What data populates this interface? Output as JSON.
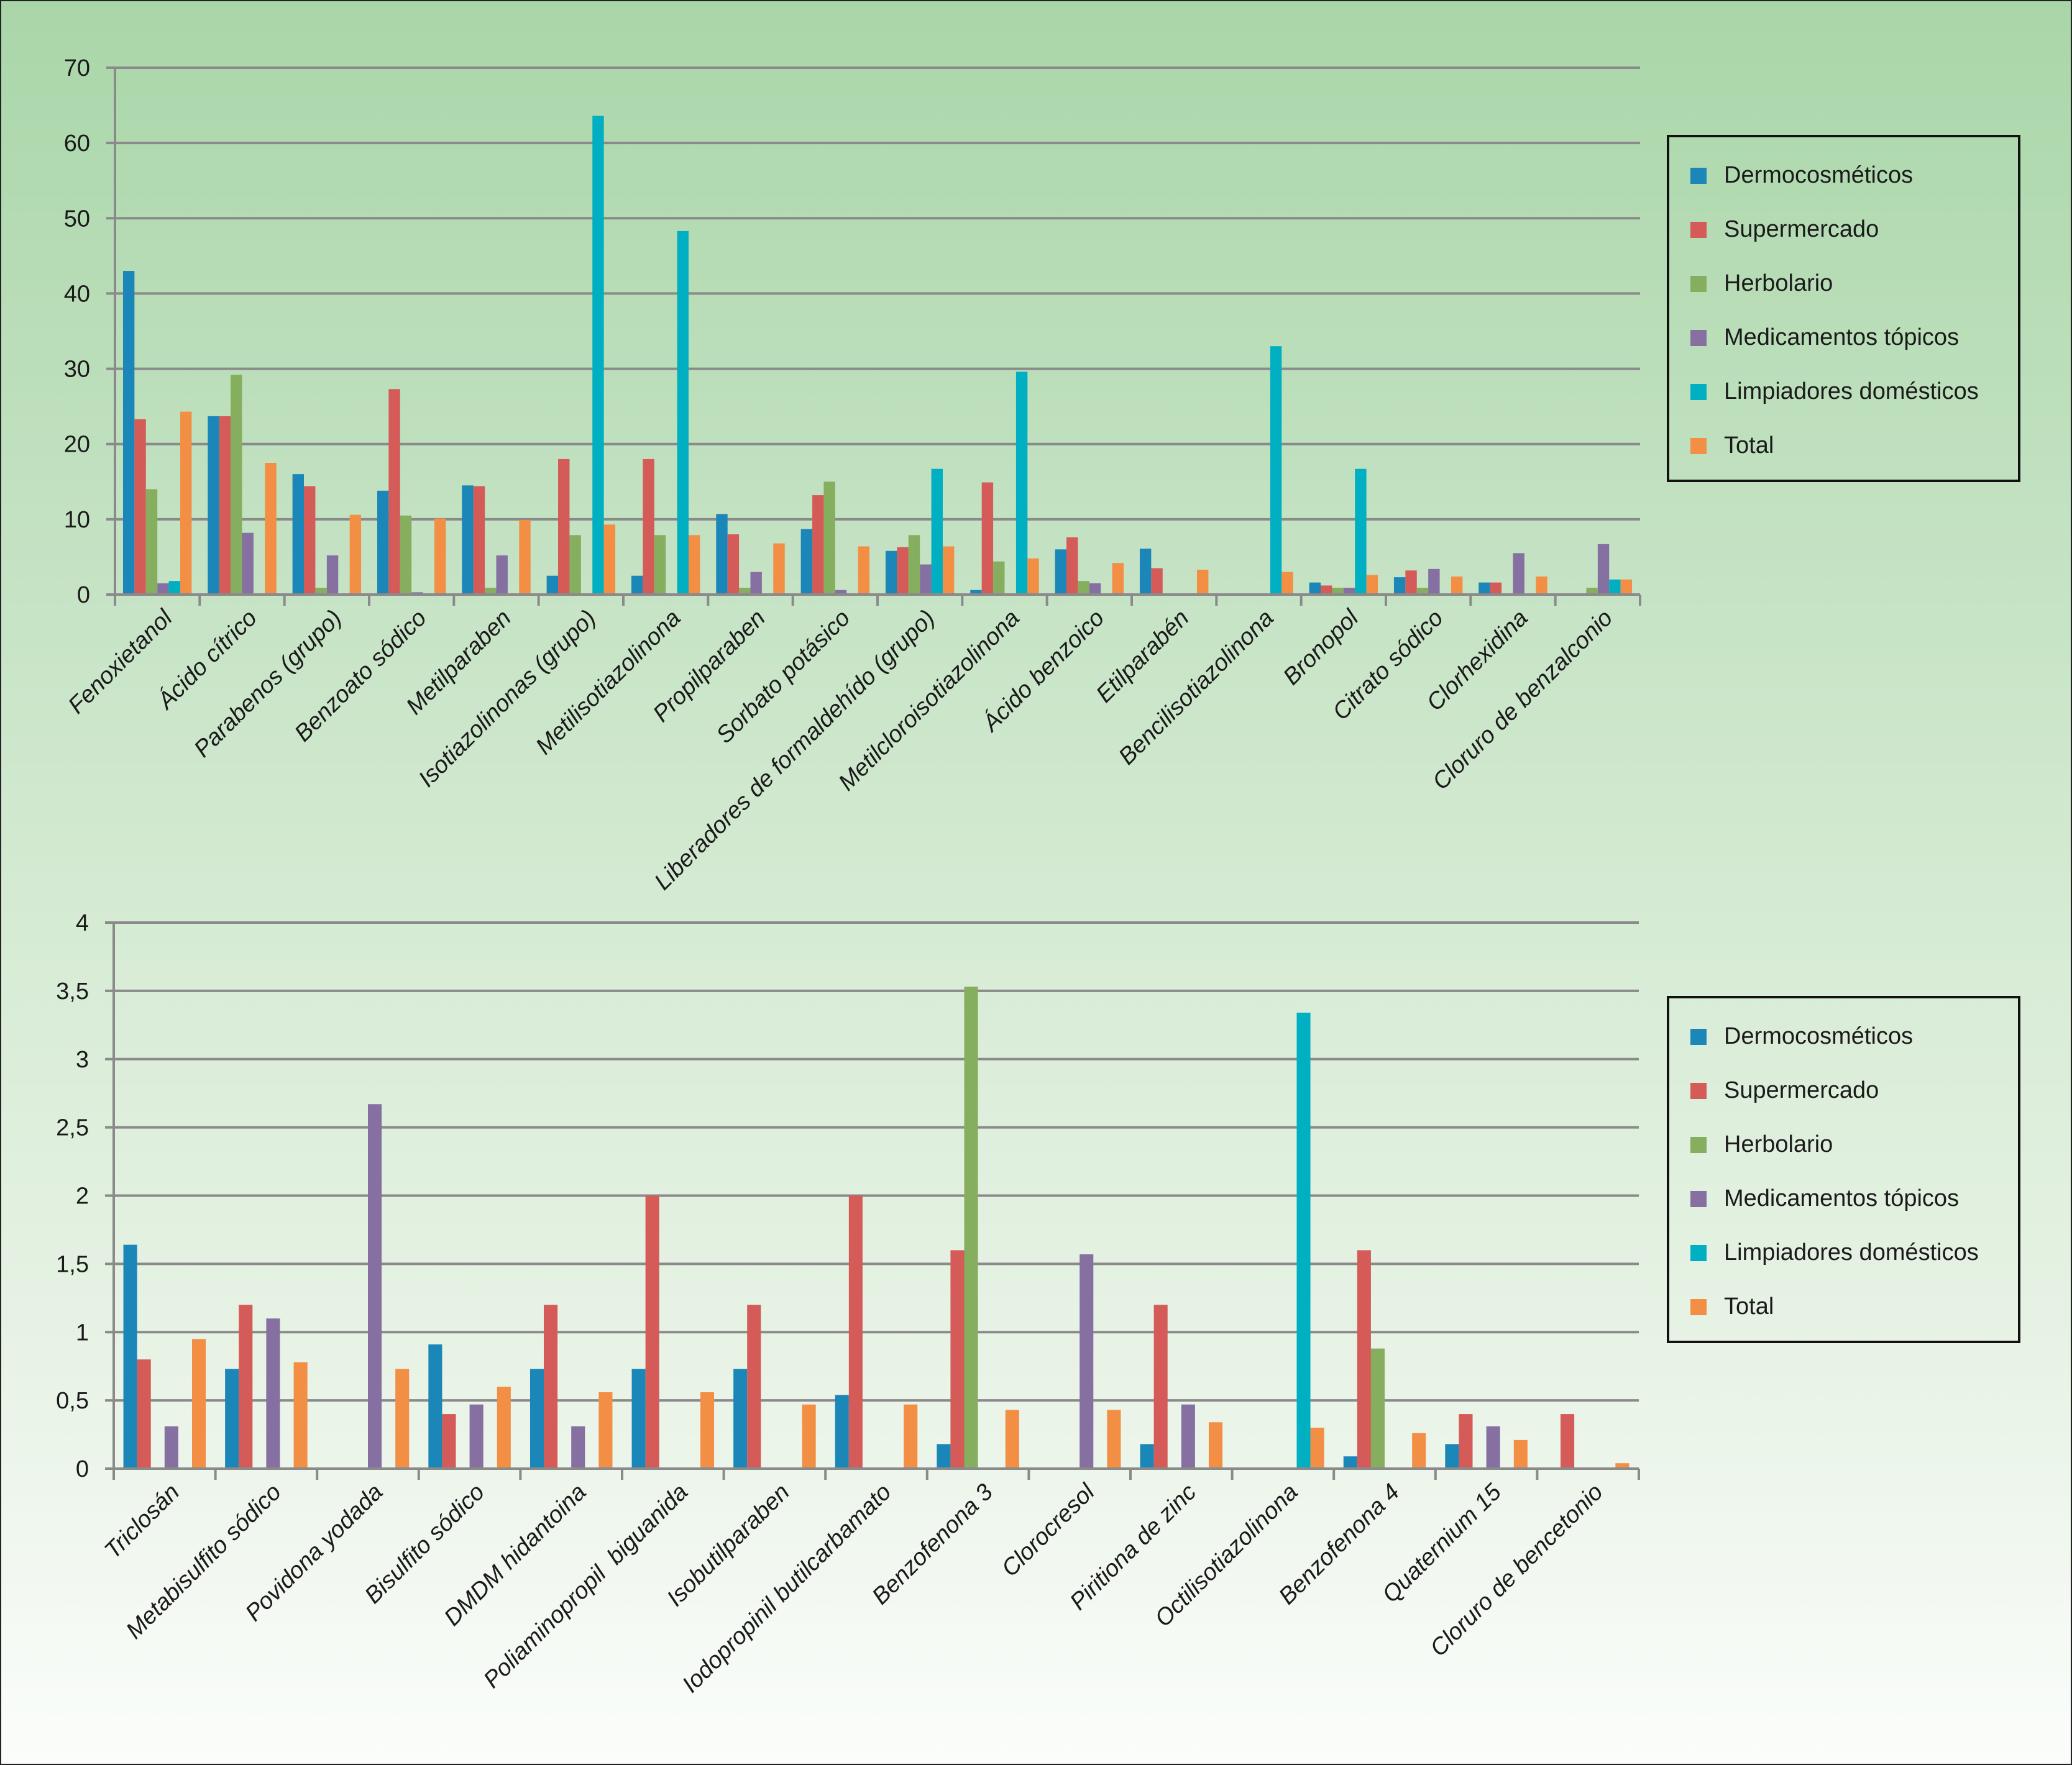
{
  "legend": {
    "items": [
      {
        "label": "Dermocosméticos",
        "color": "#1b86b8"
      },
      {
        "label": "Supermercado",
        "color": "#d45b57"
      },
      {
        "label": "Herbolario",
        "color": "#86ae5f"
      },
      {
        "label": "Medicamentos tópicos",
        "color": "#8670a2"
      },
      {
        "label": "Limpiadores domésticos",
        "color": "#00afc2"
      },
      {
        "label": "Total",
        "color": "#f28f45"
      }
    ]
  },
  "chart_data": [
    {
      "type": "bar",
      "title": "",
      "xlabel": "",
      "ylabel": "",
      "ylim": [
        0,
        70
      ],
      "yticks": [
        "0",
        "10",
        "20",
        "30",
        "40",
        "50",
        "60",
        "70"
      ],
      "grid": true,
      "legend_position": "right",
      "categories": [
        "Fenoxietanol",
        "Ácido cítrico",
        "Parabenos (grupo)",
        "Benzoato sódico",
        "Metilparaben",
        "Isotiazolinonas (grupo)",
        "Metilisotiazolinona",
        "Propilparaben",
        "Sorbato potásico",
        "Liberadores de formaldehído (grupo)",
        "Metilcloroisotiazolinona",
        "Ácido benzoico",
        "Etilparabén",
        "Bencilisotiazolinona",
        "Bronopol",
        "Citrato sódico",
        "Clorhexidina",
        "Cloruro de benzalconio"
      ],
      "series": [
        {
          "name": "Dermocosméticos",
          "values": [
            43,
            23.7,
            16,
            13.8,
            14.5,
            2.5,
            2.5,
            10.7,
            8.7,
            5.8,
            0.6,
            6,
            6.1,
            0,
            1.6,
            2.3,
            1.6,
            0
          ]
        },
        {
          "name": "Supermercado",
          "values": [
            23.3,
            23.7,
            14.4,
            27.3,
            14.4,
            18,
            18,
            8,
            13.2,
            6.3,
            14.9,
            7.6,
            3.5,
            0,
            1.2,
            3.2,
            1.6,
            0
          ]
        },
        {
          "name": "Herbolario",
          "values": [
            14,
            29.2,
            0.9,
            10.5,
            0.9,
            7.9,
            7.9,
            0.9,
            15,
            7.9,
            4.4,
            1.8,
            0,
            0,
            0.9,
            0.9,
            0,
            0.9
          ]
        },
        {
          "name": "Medicamentos tópicos",
          "values": [
            1.5,
            8.2,
            5.2,
            0.3,
            5.2,
            0,
            0,
            3,
            0.6,
            4,
            0,
            1.5,
            0,
            0,
            0.9,
            3.4,
            5.5,
            6.7
          ]
        },
        {
          "name": "Limpiadores domésticos",
          "values": [
            1.8,
            0,
            0,
            0,
            0,
            63.6,
            48.3,
            0,
            0,
            16.7,
            29.6,
            0,
            0,
            33,
            16.7,
            0,
            0,
            2
          ]
        },
        {
          "name": "Total",
          "values": [
            24.3,
            17.5,
            10.6,
            10.1,
            9.9,
            9.3,
            7.9,
            6.8,
            6.4,
            6.4,
            4.8,
            4.2,
            3.3,
            3,
            2.6,
            2.4,
            2.4,
            2
          ]
        }
      ]
    },
    {
      "type": "bar",
      "title": "",
      "xlabel": "",
      "ylabel": "",
      "ylim": [
        0,
        4
      ],
      "yticks": [
        "0",
        "0,5",
        "1",
        "1,5",
        "2",
        "2,5",
        "3",
        "3,5",
        "4"
      ],
      "grid": true,
      "legend_position": "right",
      "categories": [
        "Triclosán",
        "Metabisulfito sódico",
        "Povidona yodada",
        "Bisulfito sódico",
        "DMDM hidantoina",
        "Poliaminopropil  biguanida",
        "Isobutilparaben",
        "Iodopropinil butilcarbamato",
        "Benzofenona 3",
        "Clorocresol",
        "Piritiona de zinc",
        "Octilisotiazolinona",
        "Benzofenona 4",
        "Quaternium 15",
        "Cloruro de bencetonio"
      ],
      "series": [
        {
          "name": "Dermocosméticos",
          "values": [
            1.64,
            0.73,
            0,
            0.91,
            0.73,
            0.73,
            0.73,
            0.54,
            0.18,
            0,
            0.18,
            0,
            0.09,
            0.18,
            0
          ]
        },
        {
          "name": "Supermercado",
          "values": [
            0.8,
            1.2,
            0,
            0.4,
            1.2,
            2,
            1.2,
            2,
            1.6,
            0,
            1.2,
            0,
            1.6,
            0.4,
            0.4
          ]
        },
        {
          "name": "Herbolario",
          "values": [
            0,
            0,
            0,
            0,
            0,
            0,
            0,
            0,
            3.53,
            0,
            0,
            0,
            0.88,
            0,
            0
          ]
        },
        {
          "name": "Medicamentos tópicos",
          "values": [
            0.31,
            1.1,
            2.67,
            0.47,
            0.31,
            0,
            0,
            0,
            0,
            1.57,
            0.47,
            0,
            0,
            0.31,
            0
          ]
        },
        {
          "name": "Limpiadores domésticos",
          "values": [
            0,
            0,
            0,
            0,
            0,
            0,
            0,
            0,
            0,
            0,
            0,
            3.34,
            0,
            0,
            0
          ]
        },
        {
          "name": "Total",
          "values": [
            0.95,
            0.78,
            0.73,
            0.6,
            0.56,
            0.56,
            0.47,
            0.47,
            0.43,
            0.43,
            0.34,
            0.3,
            0.26,
            0.21,
            0.04
          ]
        }
      ]
    }
  ]
}
